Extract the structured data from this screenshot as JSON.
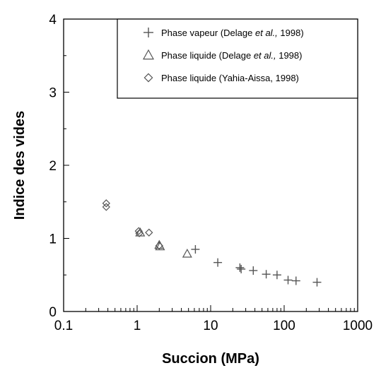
{
  "chart_data": {
    "type": "scatter",
    "xlabel": "Succion (MPa)",
    "ylabel": "Indice des vides",
    "xscale": "log",
    "xlim": [
      0.1,
      1000
    ],
    "ylim": [
      0,
      4
    ],
    "x_ticks": [
      "0.1",
      "1",
      "10",
      "100",
      "1000"
    ],
    "y_ticks": [
      "0",
      "1",
      "2",
      "3",
      "4"
    ],
    "grid": false,
    "legend_position": "top-right",
    "series": [
      {
        "name": "Phase vapeur (Delage et al., 1998)",
        "legend_parts": [
          "Phase vapeur (Delage ",
          "et al.,",
          " 1998)"
        ],
        "marker": "plus",
        "points": [
          {
            "x": 6.2,
            "y": 0.85
          },
          {
            "x": 12.5,
            "y": 0.67
          },
          {
            "x": 25,
            "y": 0.6
          },
          {
            "x": 26,
            "y": 0.58
          },
          {
            "x": 38,
            "y": 0.56
          },
          {
            "x": 57,
            "y": 0.51
          },
          {
            "x": 80,
            "y": 0.5
          },
          {
            "x": 113,
            "y": 0.43
          },
          {
            "x": 145,
            "y": 0.42
          },
          {
            "x": 280,
            "y": 0.4
          }
        ]
      },
      {
        "name": "Phase liquide (Delage et al., 1998)",
        "legend_parts": [
          "Phase liquide (Delage ",
          "et al.,",
          " 1998)"
        ],
        "marker": "triangle",
        "points": [
          {
            "x": 1.1,
            "y": 1.08
          },
          {
            "x": 2.0,
            "y": 0.91
          },
          {
            "x": 2.05,
            "y": 0.89
          },
          {
            "x": 4.8,
            "y": 0.79
          }
        ]
      },
      {
        "name": "Phase liquide (Yahia-Aissa, 1998)",
        "legend_parts": [
          "Phase liquide (Yahia-Aissa, 1998)"
        ],
        "marker": "diamond",
        "points": [
          {
            "x": 0.38,
            "y": 1.48
          },
          {
            "x": 0.38,
            "y": 1.43
          },
          {
            "x": 1.05,
            "y": 1.1
          },
          {
            "x": 1.07,
            "y": 1.07
          },
          {
            "x": 1.45,
            "y": 1.08
          },
          {
            "x": 2.0,
            "y": 0.9
          }
        ]
      }
    ]
  },
  "colors": {
    "marker": "#555555",
    "axis": "#000000",
    "legend_border": "#000000"
  }
}
